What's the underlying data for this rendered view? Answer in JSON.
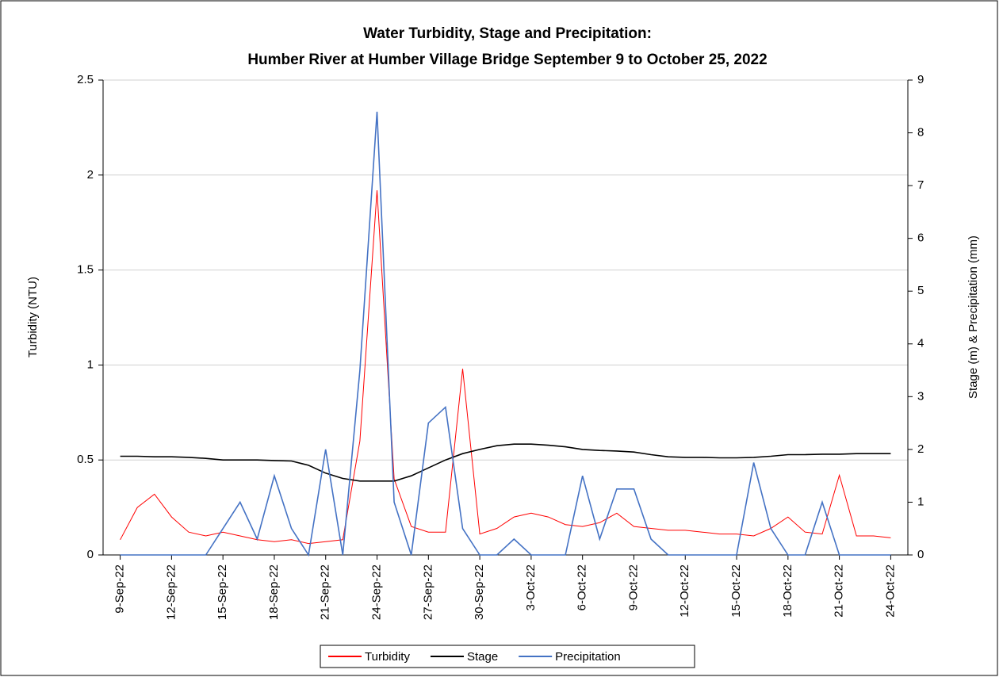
{
  "chart_data": {
    "type": "line",
    "title": "Water Turbidity, Stage and Precipitation:",
    "subtitle": "Humber River at Humber Village Bridge September 9 to October 25, 2022",
    "y_label": "Turbidity (NTU)",
    "y2_label": "Stage (m) & Precipitation (mm)",
    "x": [
      "2022-09-09",
      "2022-09-10",
      "2022-09-11",
      "2022-09-12",
      "2022-09-13",
      "2022-09-14",
      "2022-09-15",
      "2022-09-16",
      "2022-09-17",
      "2022-09-18",
      "2022-09-19",
      "2022-09-20",
      "2022-09-21",
      "2022-09-22",
      "2022-09-23",
      "2022-09-24",
      "2022-09-25",
      "2022-09-26",
      "2022-09-27",
      "2022-09-28",
      "2022-09-29",
      "2022-09-30",
      "2022-10-01",
      "2022-10-02",
      "2022-10-03",
      "2022-10-04",
      "2022-10-05",
      "2022-10-06",
      "2022-10-07",
      "2022-10-08",
      "2022-10-09",
      "2022-10-10",
      "2022-10-11",
      "2022-10-12",
      "2022-10-13",
      "2022-10-14",
      "2022-10-15",
      "2022-10-16",
      "2022-10-17",
      "2022-10-18",
      "2022-10-19",
      "2022-10-20",
      "2022-10-21",
      "2022-10-22",
      "2022-10-23",
      "2022-10-24"
    ],
    "xlim": [
      "2022-09-08",
      "2022-10-25"
    ],
    "xticks": [
      {
        "value": "2022-09-09",
        "label": "9-Sep-22"
      },
      {
        "value": "2022-09-12",
        "label": "12-Sep-22"
      },
      {
        "value": "2022-09-15",
        "label": "15-Sep-22"
      },
      {
        "value": "2022-09-18",
        "label": "18-Sep-22"
      },
      {
        "value": "2022-09-21",
        "label": "21-Sep-22"
      },
      {
        "value": "2022-09-24",
        "label": "24-Sep-22"
      },
      {
        "value": "2022-09-27",
        "label": "27-Sep-22"
      },
      {
        "value": "2022-09-30",
        "label": "30-Sep-22"
      },
      {
        "value": "2022-10-03",
        "label": "3-Oct-22"
      },
      {
        "value": "2022-10-06",
        "label": "6-Oct-22"
      },
      {
        "value": "2022-10-09",
        "label": "9-Oct-22"
      },
      {
        "value": "2022-10-12",
        "label": "12-Oct-22"
      },
      {
        "value": "2022-10-15",
        "label": "15-Oct-22"
      },
      {
        "value": "2022-10-18",
        "label": "18-Oct-22"
      },
      {
        "value": "2022-10-21",
        "label": "21-Oct-22"
      },
      {
        "value": "2022-10-24",
        "label": "24-Oct-22"
      }
    ],
    "ylim": [
      0,
      2.5
    ],
    "yticks": [
      0,
      0.5,
      1,
      1.5,
      2,
      2.5
    ],
    "y2lim": [
      0,
      9
    ],
    "y2ticks": [
      0,
      1,
      2,
      3,
      4,
      5,
      6,
      7,
      8,
      9
    ],
    "grid": true,
    "legend": "bottom",
    "series": [
      {
        "name": "Turbidity",
        "color": "#ff0000",
        "values": [
          0.08,
          0.25,
          0.32,
          0.2,
          0.12,
          0.1,
          0.12,
          0.1,
          0.08,
          0.07,
          0.08,
          0.06,
          0.07,
          0.08,
          0.6,
          1.92,
          0.4,
          0.15,
          0.12,
          0.12,
          0.98,
          0.11,
          0.14,
          0.2,
          0.22,
          0.2,
          0.16,
          0.15,
          0.17,
          0.22,
          0.15,
          0.14,
          0.13,
          0.13,
          0.12,
          0.11,
          0.11,
          0.1,
          0.14,
          0.2,
          0.12,
          0.11,
          0.42,
          0.1,
          0.1,
          0.09
        ]
      },
      {
        "name": "Stage",
        "color": "#000000",
        "axis": "y2",
        "values": [
          1.87,
          1.87,
          1.86,
          1.86,
          1.85,
          1.83,
          1.8,
          1.8,
          1.8,
          1.79,
          1.78,
          1.7,
          1.55,
          1.45,
          1.4,
          1.4,
          1.4,
          1.5,
          1.65,
          1.8,
          1.92,
          2.0,
          2.07,
          2.1,
          2.1,
          2.08,
          2.05,
          2.0,
          1.98,
          1.97,
          1.95,
          1.9,
          1.86,
          1.85,
          1.85,
          1.84,
          1.84,
          1.85,
          1.87,
          1.9,
          1.9,
          1.91,
          1.91,
          1.92,
          1.92,
          1.92
        ]
      },
      {
        "name": "Precipitation",
        "color": "#4472c4",
        "axis": "y2",
        "values": [
          0,
          0,
          0,
          0,
          0,
          0,
          0.5,
          1.0,
          0.3,
          1.5,
          0.5,
          0,
          2.0,
          0,
          3.5,
          8.4,
          1.0,
          0,
          2.5,
          2.8,
          0.5,
          0,
          0,
          0.3,
          0,
          0,
          0,
          1.5,
          0.3,
          1.25,
          1.25,
          0.3,
          0,
          0,
          0,
          0,
          0,
          1.75,
          0.5,
          0,
          0,
          1.0,
          0,
          0,
          0,
          0
        ]
      }
    ]
  }
}
